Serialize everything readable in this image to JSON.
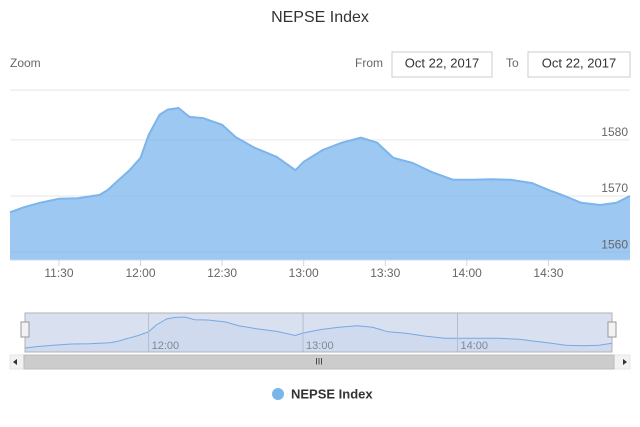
{
  "chart_data": {
    "type": "area",
    "title": "NEPSE Index",
    "range_selector": {
      "zoom_label": "Zoom",
      "from_label": "From",
      "from": "Oct 22, 2017",
      "to_label": "To",
      "to": "Oct 22, 2017"
    },
    "x": [
      "11:12",
      "11:17",
      "11:23",
      "11:30",
      "11:37",
      "11:45",
      "11:48",
      "11:52",
      "11:56",
      "12:00",
      "12:03",
      "12:07",
      "12:10",
      "12:14",
      "12:18",
      "12:23",
      "12:30",
      "12:35",
      "12:42",
      "12:50",
      "12:57",
      "13:00",
      "13:07",
      "13:14",
      "13:21",
      "13:27",
      "13:33",
      "13:40",
      "13:47",
      "13:55",
      "14:02",
      "14:09",
      "14:16",
      "14:24",
      "14:30",
      "14:35",
      "14:42",
      "14:49",
      "14:55",
      "15:00"
    ],
    "series": [
      {
        "name": "NEPSE Index",
        "color": "#7cb5ec",
        "values": [
          1567.1,
          1568.0,
          1568.8,
          1569.5,
          1569.6,
          1570.2,
          1571.1,
          1572.9,
          1574.6,
          1576.8,
          1580.9,
          1584.5,
          1585.4,
          1585.7,
          1584.1,
          1583.9,
          1582.7,
          1580.5,
          1578.6,
          1577.0,
          1574.6,
          1576.1,
          1578.2,
          1579.5,
          1580.4,
          1579.5,
          1576.8,
          1575.9,
          1574.3,
          1572.9,
          1572.9,
          1573.0,
          1572.9,
          1572.3,
          1571.1,
          1570.2,
          1568.8,
          1568.4,
          1568.8,
          1570.0
        ]
      }
    ],
    "xlim": [
      "11:12",
      "15:00"
    ],
    "xticks": [
      "11:30",
      "12:00",
      "12:30",
      "13:00",
      "13:30",
      "14:00",
      "14:30"
    ],
    "ylim": [
      1558.6,
      1588.9
    ],
    "yticks": [
      1560,
      1570,
      1580
    ],
    "grid": true
  }
}
